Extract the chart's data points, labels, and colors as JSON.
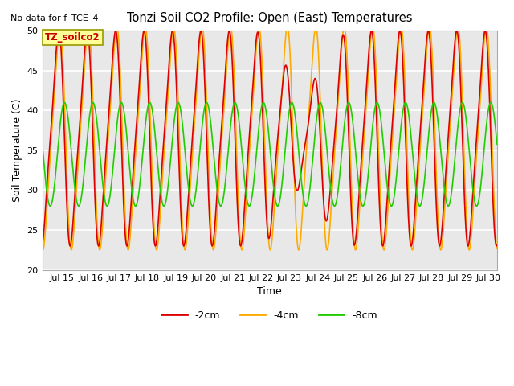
{
  "title": "Tonzi Soil CO2 Profile: Open (East) Temperatures",
  "xlabel": "Time",
  "ylabel": "Soil Temperature (C)",
  "no_data_text": "No data for f_TCE_4",
  "annotation_text": "TZ_soilco2",
  "ylim": [
    20,
    50
  ],
  "xlim_start": 14.3,
  "xlim_end": 30.3,
  "x_tick_labels": [
    "Jul 15",
    "Jul 16",
    "Jul 17",
    "Jul 18",
    "Jul 19",
    "Jul 20",
    "Jul 21",
    "Jul 22",
    "Jul 23",
    "Jul 24",
    "Jul 25",
    "Jul 26",
    "Jul 27",
    "Jul 28",
    "Jul 29",
    "Jul 30"
  ],
  "x_tick_positions": [
    15,
    16,
    17,
    18,
    19,
    20,
    21,
    22,
    23,
    24,
    25,
    26,
    27,
    28,
    29,
    30
  ],
  "color_2cm": "#dd0000",
  "color_4cm": "#ffaa00",
  "color_8cm": "#22cc00",
  "label_2cm": "-2cm",
  "label_4cm": "-4cm",
  "label_8cm": "-8cm",
  "background_color": "#e8e8e8",
  "grid_color": "white",
  "linewidth": 1.2,
  "mid_shallow": 36.5,
  "amp_shallow": 13.5,
  "mid_deep": 34.5,
  "amp_deep": 6.5,
  "peak_hour_2cm": 14.0,
  "peak_hour_4cm": 15.0,
  "peak_hour_8cm": 20.0,
  "sharpness_shallow": 0.4,
  "trough_drop_2cm": 23.2,
  "trough_drop_4cm": 22.0,
  "trough_deep": 28.0
}
